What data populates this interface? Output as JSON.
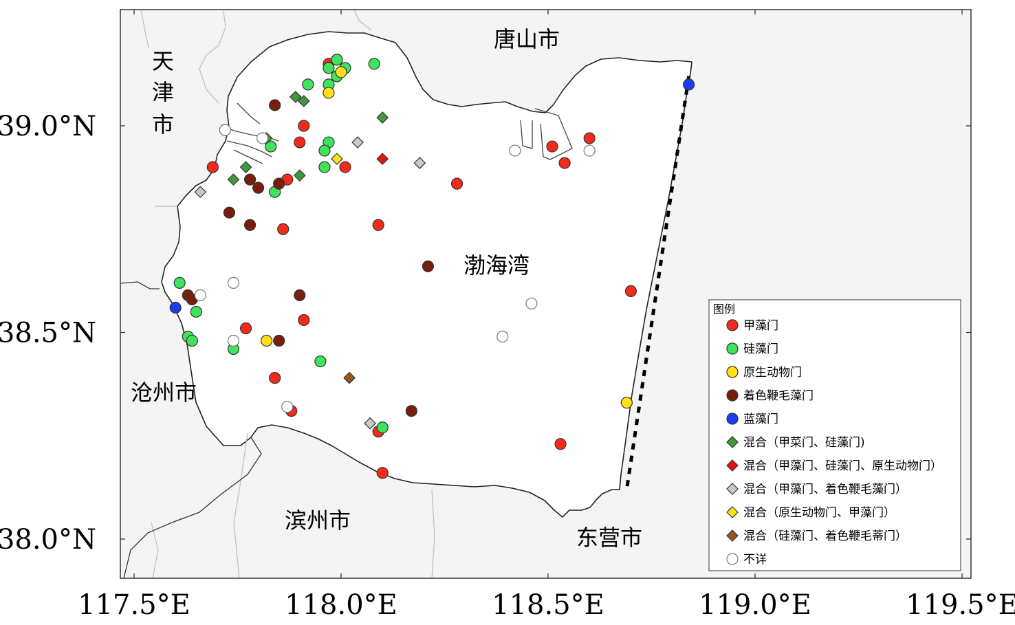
{
  "map": {
    "x_ticks": [
      117.5,
      118.0,
      118.5,
      119.0,
      119.5
    ],
    "y_ticks": [
      38.0,
      38.5,
      39.0
    ],
    "x_tick_labels": [
      "117.5°E",
      "118.0°E",
      "118.5°E",
      "119.0°E",
      "119.5°E"
    ],
    "y_tick_labels": [
      "38.0°N",
      "38.5°N",
      "39.0°N"
    ],
    "labels": {
      "tianjin": [
        "天",
        "津",
        "市"
      ],
      "tangshan": "唐山市",
      "bohai_bay": "渤海湾",
      "cangzhou": "沧州市",
      "binzhou": "滨州市",
      "dongying": "东营市"
    },
    "boundary_line": [
      [
        118.84,
        39.12
      ],
      [
        118.69,
        38.12
      ]
    ]
  },
  "legend": {
    "title": "图例",
    "items": [
      {
        "label": "甲藻门",
        "marker": "circle",
        "color": "#f42a1b"
      },
      {
        "label": "硅藻门",
        "marker": "circle",
        "color": "#3fe35c"
      },
      {
        "label": "原生动物门",
        "marker": "circle",
        "color": "#ffe11a"
      },
      {
        "label": "着色鞭毛藻门",
        "marker": "circle",
        "color": "#7a1d0c"
      },
      {
        "label": "蓝藻门",
        "marker": "circle",
        "color": "#1a3cf2"
      },
      {
        "label": "混合（甲菜门、硅藻门)",
        "marker": "diamond",
        "color": "#3f9b3a"
      },
      {
        "label": "混合（甲藻门、硅藻门、原生动物门）",
        "marker": "diamond",
        "color": "#e01414"
      },
      {
        "label": "混合（甲藻门、着色鞭毛藻门）",
        "marker": "diamond",
        "color": "#c9c9c9"
      },
      {
        "label": "混合（原生动物门、甲藻门）",
        "marker": "diamond",
        "color": "#ffe11a"
      },
      {
        "label": "混合（硅藻门、着色鞭毛蒂门）",
        "marker": "diamond",
        "color": "#9a5518"
      },
      {
        "label": "不详",
        "marker": "circle",
        "color": "#ffffff"
      }
    ]
  },
  "points": [
    {
      "lon": 117.97,
      "lat": 39.15,
      "c": 0
    },
    {
      "lon": 117.99,
      "lat": 39.16,
      "c": 0
    },
    {
      "lon": 117.91,
      "lat": 39.0,
      "c": 0
    },
    {
      "lon": 117.72,
      "lat": 38.99,
      "c": 0
    },
    {
      "lon": 117.9,
      "lat": 38.96,
      "c": 0
    },
    {
      "lon": 118.01,
      "lat": 38.9,
      "c": 0
    },
    {
      "lon": 117.69,
      "lat": 38.9,
      "c": 0
    },
    {
      "lon": 117.87,
      "lat": 38.87,
      "c": 0
    },
    {
      "lon": 118.28,
      "lat": 38.86,
      "c": 0
    },
    {
      "lon": 118.09,
      "lat": 38.76,
      "c": 0
    },
    {
      "lon": 117.86,
      "lat": 38.75,
      "c": 0
    },
    {
      "lon": 118.51,
      "lat": 38.95,
      "c": 0
    },
    {
      "lon": 118.54,
      "lat": 38.91,
      "c": 0
    },
    {
      "lon": 118.6,
      "lat": 38.97,
      "c": 0
    },
    {
      "lon": 118.7,
      "lat": 38.6,
      "c": 0
    },
    {
      "lon": 117.77,
      "lat": 38.51,
      "c": 0
    },
    {
      "lon": 117.91,
      "lat": 38.53,
      "c": 0
    },
    {
      "lon": 117.84,
      "lat": 38.39,
      "c": 0
    },
    {
      "lon": 117.88,
      "lat": 38.31,
      "c": 0
    },
    {
      "lon": 118.09,
      "lat": 38.26,
      "c": 0
    },
    {
      "lon": 118.1,
      "lat": 38.16,
      "c": 0
    },
    {
      "lon": 118.53,
      "lat": 38.23,
      "c": 0
    },
    {
      "lon": 117.97,
      "lat": 39.14,
      "c": 1
    },
    {
      "lon": 117.99,
      "lat": 39.16,
      "c": 1
    },
    {
      "lon": 118.01,
      "lat": 39.14,
      "c": 1
    },
    {
      "lon": 117.99,
      "lat": 39.12,
      "c": 1
    },
    {
      "lon": 117.97,
      "lat": 39.1,
      "c": 1
    },
    {
      "lon": 117.92,
      "lat": 39.1,
      "c": 1
    },
    {
      "lon": 118.08,
      "lat": 39.15,
      "c": 1
    },
    {
      "lon": 117.97,
      "lat": 38.96,
      "c": 1
    },
    {
      "lon": 117.96,
      "lat": 38.94,
      "c": 1
    },
    {
      "lon": 117.96,
      "lat": 38.9,
      "c": 1
    },
    {
      "lon": 117.83,
      "lat": 38.95,
      "c": 1
    },
    {
      "lon": 117.84,
      "lat": 38.84,
      "c": 1
    },
    {
      "lon": 117.61,
      "lat": 38.62,
      "c": 1
    },
    {
      "lon": 117.65,
      "lat": 38.55,
      "c": 1
    },
    {
      "lon": 117.63,
      "lat": 38.49,
      "c": 1
    },
    {
      "lon": 117.64,
      "lat": 38.48,
      "c": 1
    },
    {
      "lon": 117.74,
      "lat": 38.46,
      "c": 1
    },
    {
      "lon": 117.95,
      "lat": 38.43,
      "c": 1
    },
    {
      "lon": 118.1,
      "lat": 38.27,
      "c": 1
    },
    {
      "lon": 118.0,
      "lat": 39.13,
      "c": 2
    },
    {
      "lon": 117.97,
      "lat": 39.08,
      "c": 2
    },
    {
      "lon": 117.82,
      "lat": 38.48,
      "c": 2
    },
    {
      "lon": 118.69,
      "lat": 38.33,
      "c": 2
    },
    {
      "lon": 117.84,
      "lat": 39.05,
      "c": 3
    },
    {
      "lon": 117.78,
      "lat": 38.87,
      "c": 3
    },
    {
      "lon": 117.8,
      "lat": 38.85,
      "c": 3
    },
    {
      "lon": 117.85,
      "lat": 38.86,
      "c": 3
    },
    {
      "lon": 117.73,
      "lat": 38.79,
      "c": 3
    },
    {
      "lon": 117.78,
      "lat": 38.76,
      "c": 3
    },
    {
      "lon": 118.21,
      "lat": 38.66,
      "c": 3
    },
    {
      "lon": 117.9,
      "lat": 38.59,
      "c": 3
    },
    {
      "lon": 117.63,
      "lat": 38.59,
      "c": 3
    },
    {
      "lon": 117.64,
      "lat": 38.58,
      "c": 3
    },
    {
      "lon": 117.85,
      "lat": 38.48,
      "c": 3
    },
    {
      "lon": 118.17,
      "lat": 38.31,
      "c": 3
    },
    {
      "lon": 117.6,
      "lat": 38.56,
      "c": 4
    },
    {
      "lon": 118.84,
      "lat": 39.1,
      "c": 4
    },
    {
      "lon": 117.89,
      "lat": 39.07,
      "c": 5
    },
    {
      "lon": 117.91,
      "lat": 39.06,
      "c": 5
    },
    {
      "lon": 118.1,
      "lat": 39.02,
      "c": 5
    },
    {
      "lon": 117.82,
      "lat": 38.97,
      "c": 5
    },
    {
      "lon": 117.77,
      "lat": 38.9,
      "c": 5
    },
    {
      "lon": 117.74,
      "lat": 38.87,
      "c": 5
    },
    {
      "lon": 117.9,
      "lat": 38.88,
      "c": 5
    },
    {
      "lon": 118.1,
      "lat": 38.92,
      "c": 6
    },
    {
      "lon": 118.04,
      "lat": 38.96,
      "c": 7
    },
    {
      "lon": 118.19,
      "lat": 38.91,
      "c": 7
    },
    {
      "lon": 117.66,
      "lat": 38.84,
      "c": 7
    },
    {
      "lon": 118.07,
      "lat": 38.28,
      "c": 7
    },
    {
      "lon": 117.99,
      "lat": 38.92,
      "c": 8
    },
    {
      "lon": 118.02,
      "lat": 38.39,
      "c": 9
    },
    {
      "lon": 117.72,
      "lat": 38.99,
      "c": 10
    },
    {
      "lon": 117.81,
      "lat": 38.97,
      "c": 10
    },
    {
      "lon": 118.42,
      "lat": 38.94,
      "c": 10
    },
    {
      "lon": 118.6,
      "lat": 38.94,
      "c": 10
    },
    {
      "lon": 117.74,
      "lat": 38.62,
      "c": 10
    },
    {
      "lon": 117.66,
      "lat": 38.59,
      "c": 10
    },
    {
      "lon": 118.46,
      "lat": 38.57,
      "c": 10
    },
    {
      "lon": 118.39,
      "lat": 38.49,
      "c": 10
    },
    {
      "lon": 117.74,
      "lat": 38.48,
      "c": 10
    },
    {
      "lon": 117.87,
      "lat": 38.32,
      "c": 10
    }
  ]
}
